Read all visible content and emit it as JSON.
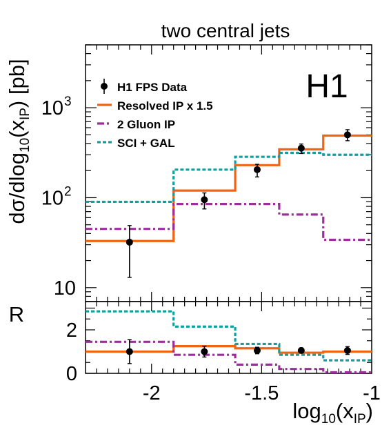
{
  "chart_data": [
    {
      "type": "line",
      "title": "two central jets",
      "ylabel_parts": [
        "dσ/dlog",
        "10",
        "(x",
        "IP",
        ") [pb]"
      ],
      "ylabel": "dσ/dlog10(xIP) [pb]",
      "yscale": "log",
      "ylim": [
        7,
        5000
      ],
      "xlim": [
        -2.3,
        -1.0
      ],
      "experiment_label": "H1",
      "y_tick_labels": [
        {
          "value": 10,
          "base": "10",
          "exp": ""
        },
        {
          "value": 100,
          "base": "10",
          "exp": "2"
        },
        {
          "value": 1000,
          "base": "10",
          "exp": "3"
        }
      ],
      "bin_edges": [
        -2.3,
        -1.9,
        -1.62,
        -1.42,
        -1.22,
        -1.0
      ],
      "data_points": {
        "name": "H1 FPS Data",
        "x": [
          -2.1,
          -1.76,
          -1.52,
          -1.32,
          -1.11
        ],
        "y": [
          32,
          95,
          205,
          355,
          500
        ],
        "err_low": [
          19,
          20,
          35,
          45,
          70
        ],
        "err_high": [
          17,
          18,
          30,
          40,
          70
        ]
      },
      "series": [
        {
          "name": "Resolved IP x 1.5",
          "color": "#f06414",
          "style": "solid",
          "values": [
            33,
            120,
            230,
            345,
            490
          ]
        },
        {
          "name": "2 Gluon IP",
          "color": "#9c2e9c",
          "style": "dashdot",
          "values": [
            45,
            85,
            85,
            65,
            34
          ]
        },
        {
          "name": "SCI + GAL",
          "color": "#129e9e",
          "style": "dotted",
          "values": [
            90,
            205,
            285,
            315,
            300
          ]
        }
      ]
    },
    {
      "type": "line",
      "ylabel": "R",
      "xlabel_parts": [
        "log",
        "10",
        "(x",
        "IP",
        ")"
      ],
      "xlabel": "log10(xIP)",
      "ylim": [
        0,
        3.3
      ],
      "xlim": [
        -2.3,
        -1.0
      ],
      "x_ticks": [
        {
          "value": -2,
          "label": "-2"
        },
        {
          "value": -1.5,
          "label": "-1.5"
        },
        {
          "value": -1,
          "label": "-1"
        }
      ],
      "y_ticks": [
        {
          "value": 0,
          "label": "0"
        },
        {
          "value": 2,
          "label": "2"
        }
      ],
      "bin_edges": [
        -2.3,
        -1.9,
        -1.62,
        -1.42,
        -1.22,
        -1.0
      ],
      "data_points": {
        "name": "H1 FPS Data",
        "x": [
          -2.1,
          -1.76,
          -1.52,
          -1.32,
          -1.11
        ],
        "y": [
          1.0,
          1.0,
          1.05,
          1.05,
          1.05
        ],
        "err_low": [
          0.55,
          0.25,
          0.15,
          0.12,
          0.18
        ],
        "err_high": [
          0.55,
          0.25,
          0.15,
          0.12,
          0.18
        ]
      },
      "series": [
        {
          "name": "Resolved IP x 1.5",
          "color": "#f06414",
          "style": "solid",
          "values": [
            1.0,
            1.25,
            1.15,
            0.95,
            1.0
          ]
        },
        {
          "name": "2 Gluon IP",
          "color": "#9c2e9c",
          "style": "dashdot",
          "values": [
            1.45,
            0.85,
            0.4,
            0.2,
            0.05
          ]
        },
        {
          "name": "SCI + GAL",
          "color": "#129e9e",
          "style": "dotted",
          "values": [
            2.85,
            2.15,
            1.35,
            0.85,
            0.6
          ]
        }
      ]
    }
  ]
}
